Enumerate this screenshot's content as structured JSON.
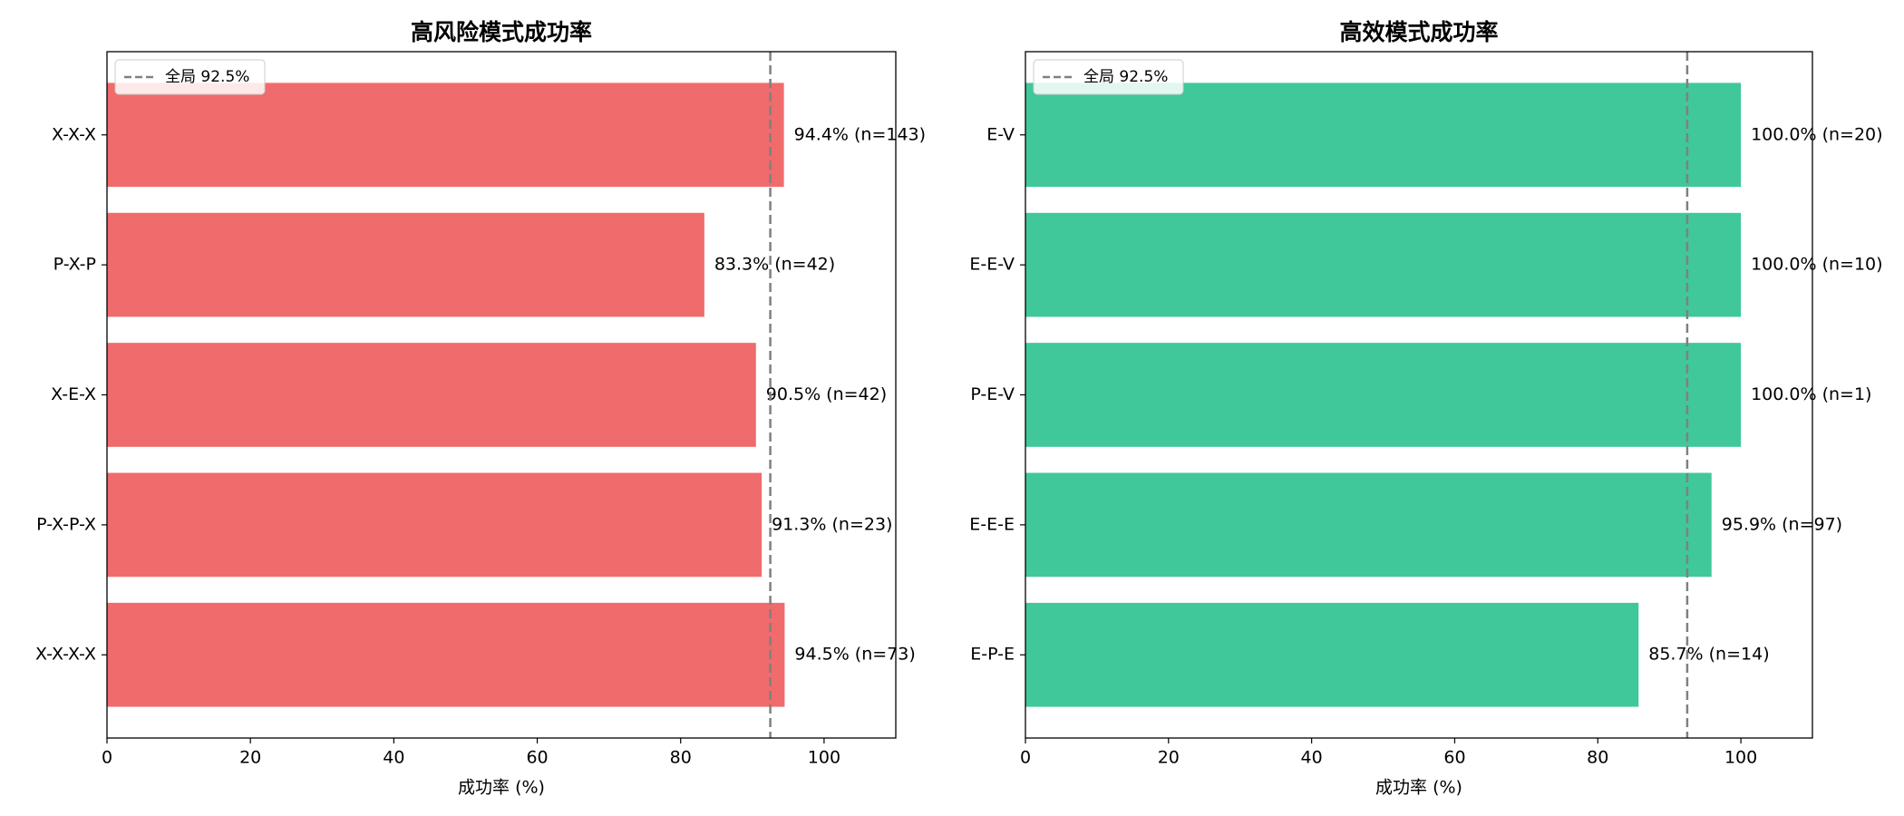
{
  "chart_data": [
    {
      "type": "barh",
      "title": "高风险模式成功率",
      "categories": [
        "X-X-X",
        "P-X-P",
        "X-E-X",
        "P-X-P-X",
        "X-X-X-X"
      ],
      "values": [
        94.4,
        83.3,
        90.5,
        91.3,
        94.5
      ],
      "value_labels": [
        "94.4% (n=143)",
        "83.3% (n=42)",
        "90.5% (n=42)",
        "91.3% (n=23)",
        "94.5% (n=73)"
      ],
      "color": "#f06b6b",
      "xlabel": "成功率 (%)",
      "xlim": [
        0,
        110
      ],
      "xticks": [
        0,
        20,
        40,
        60,
        80,
        100
      ],
      "reference": {
        "value": 92.5,
        "label": "全局 92.5%"
      },
      "legend": "upper left"
    },
    {
      "type": "barh",
      "title": "高效模式成功率",
      "categories": [
        "E-V",
        "E-E-V",
        "P-E-V",
        "E-E-E",
        "E-P-E"
      ],
      "values": [
        100.0,
        100.0,
        100.0,
        95.9,
        85.7
      ],
      "value_labels": [
        "100.0% (n=20)",
        "100.0% (n=10)",
        "100.0% (n=1)",
        "95.9% (n=97)",
        "85.7% (n=14)"
      ],
      "color": "#40c89a",
      "xlabel": "成功率 (%)",
      "xlim": [
        0,
        110
      ],
      "xticks": [
        0,
        20,
        40,
        60,
        80,
        100
      ],
      "reference": {
        "value": 92.5,
        "label": "全局 92.5%"
      },
      "legend": "upper left"
    }
  ]
}
